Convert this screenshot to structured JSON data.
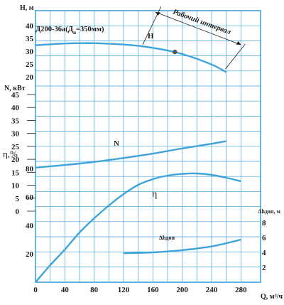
{
  "chart_data": {
    "type": "line",
    "model": "Д200-36а(Д",
    "model_sub": "н",
    "model_tail": "=350мм)",
    "interval_label": "Рабочий интервал",
    "x": {
      "label": "Q, м³/ч",
      "ticks": [
        "0",
        "40",
        "80",
        "120",
        "160",
        "200",
        "240",
        "280"
      ],
      "range": [
        0,
        300
      ]
    },
    "axes": {
      "H": {
        "label": "H, м",
        "ticks": [
          "20",
          "25",
          "30",
          "35",
          "40"
        ],
        "range": [
          20,
          40
        ]
      },
      "N": {
        "label": "N, кВт",
        "ticks": [
          "0",
          "5",
          "10",
          "15",
          "20",
          "25",
          "30",
          "35",
          "40",
          "45"
        ],
        "range": [
          0,
          45
        ]
      },
      "eta": {
        "label": "η,%",
        "ticks": [
          "20",
          "40",
          "60",
          "80"
        ],
        "range": [
          0,
          80
        ]
      },
      "npsh": {
        "label": "Δhдоп, м",
        "ticks": [
          "2",
          "4",
          "6",
          "8"
        ],
        "range": [
          0,
          8
        ]
      }
    },
    "series": [
      {
        "name": "H",
        "axis": "H",
        "x": [
          0,
          40,
          80,
          120,
          160,
          200,
          240,
          260
        ],
        "y": [
          32.3,
          33.0,
          33.1,
          32.6,
          31.3,
          28.9,
          24.8,
          21.8
        ],
        "color": "#3fa3d9"
      },
      {
        "name": "N",
        "axis": "N",
        "x": [
          0,
          40,
          80,
          120,
          160,
          200,
          240,
          260
        ],
        "y": [
          16.8,
          17.8,
          19.0,
          20.5,
          22.2,
          24.2,
          26.0,
          27.0
        ],
        "color": "#3fa3d9"
      },
      {
        "name": "η",
        "axis": "eta",
        "x": [
          0,
          20,
          40,
          60,
          80,
          100,
          120,
          140,
          160,
          180,
          200,
          220,
          240,
          260,
          280
        ],
        "y": [
          0,
          12,
          23,
          35,
          45,
          54,
          62,
          68.5,
          72.5,
          75,
          76.2,
          76.5,
          75.5,
          73.5,
          71
        ],
        "color": "#3fa3d9"
      },
      {
        "name": "Δhдоп",
        "axis": "npsh",
        "x": [
          120,
          160,
          200,
          240,
          280
        ],
        "y": [
          3.9,
          4.0,
          4.3,
          4.8,
          5.7
        ],
        "color": "#3fa3d9"
      }
    ],
    "operating_point": {
      "x": 190,
      "y": 29.7
    },
    "working_interval_q": [
      150,
      280
    ],
    "grid": true,
    "grid_color": "#3fa3d9",
    "curve_color": "#3fa3d9"
  }
}
